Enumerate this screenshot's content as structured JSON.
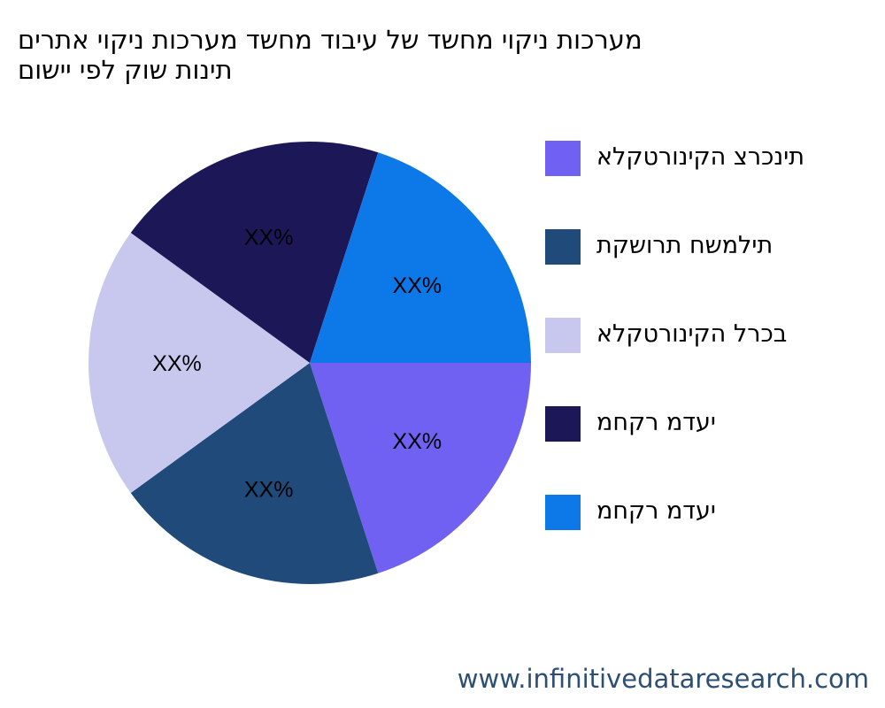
{
  "chart_data": {
    "type": "pie",
    "title_lines": [
      "מערכות ניקוי מחשד של עיבוד מחשד מערכות ניקוי אתרים",
      "תינות שוק לפי יישום"
    ],
    "categories": [
      "תינכרצ הקינורטקלא",
      "תילמשח תרושקת",
      "בכרל הקינורטקלא",
      "יעדמ רקחמ",
      "יעדמ רקחמ"
    ],
    "values": [
      20,
      20,
      20,
      20,
      20
    ],
    "data_labels": [
      "XX%",
      "XX%",
      "XX%",
      "XX%",
      "XX%"
    ],
    "colors": [
      "#7061f3",
      "#1f4a79",
      "#c8c8ef",
      "#1c1858",
      "#0d78e8"
    ],
    "legend_position": "right"
  },
  "watermark": "www.infinitivedataresearch.com"
}
